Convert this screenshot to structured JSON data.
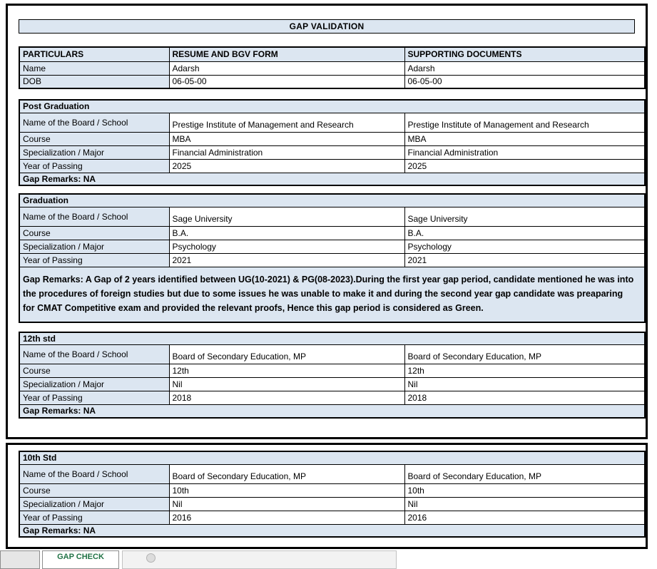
{
  "title": "GAP VALIDATION",
  "colors": {
    "band_blue": "#dce6f1",
    "tab_green": "#217346"
  },
  "particulars_table": {
    "headers": [
      "PARTICULARS",
      "RESUME AND BGV FORM",
      "SUPPORTING DOCUMENTS"
    ],
    "rows": [
      {
        "label": "Name",
        "resume": "Adarsh",
        "supporting": "Adarsh"
      },
      {
        "label": "DOB",
        "resume": "06-05-00",
        "supporting": "06-05-00"
      }
    ]
  },
  "row_labels": [
    "Name of the Board / School",
    "Course",
    "Specialization / Major",
    "Year of Passing"
  ],
  "sections": [
    {
      "title": "Post Graduation",
      "rows": [
        {
          "label": "Name of the Board / School",
          "resume": "Prestige Institute of Management and Research",
          "supporting": "Prestige Institute of Management and Research"
        },
        {
          "label": "Course",
          "resume": "MBA",
          "supporting": "MBA"
        },
        {
          "label": "Specialization / Major",
          "resume": "Financial Administration",
          "supporting": "Financial Administration"
        },
        {
          "label": "Year of Passing",
          "resume": "2025",
          "supporting": "2025"
        }
      ],
      "gap_remarks": "Gap Remarks: NA"
    },
    {
      "title": "Graduation",
      "rows": [
        {
          "label": "Name of the Board / School",
          "resume": "Sage University",
          "supporting": "Sage University"
        },
        {
          "label": "Course",
          "resume": "B.A.",
          "supporting": "B.A."
        },
        {
          "label": "Specialization / Major",
          "resume": "Psychology",
          "supporting": "Psychology"
        },
        {
          "label": "Year of Passing",
          "resume": "2021",
          "supporting": "2021"
        }
      ],
      "gap_remarks": "Gap Remarks: A Gap of 2 years identified between UG(10-2021) & PG(08-2023).During the first year gap period, candidate mentioned he was into the procedures of foreign studies but due to some issues he was unable to make it and during the second year gap candidate was preaparing for CMAT Competitive exam and provided the relevant proofs, Hence this gap period is considered as Green."
    },
    {
      "title": "12th std",
      "rows": [
        {
          "label": "Name of the Board / School",
          "resume": "Board of Secondary Education, MP",
          "supporting": "Board of Secondary Education, MP"
        },
        {
          "label": "Course",
          "resume": "12th",
          "supporting": "12th"
        },
        {
          "label": "Specialization / Major",
          "resume": "Nil",
          "supporting": "Nil"
        },
        {
          "label": "Year of Passing",
          "resume": "2018",
          "supporting": "2018"
        }
      ],
      "gap_remarks": "Gap Remarks: NA"
    },
    {
      "title": "10th Std",
      "rows": [
        {
          "label": "Name of the Board / School",
          "resume": "Board of Secondary Education, MP",
          "supporting": "Board of Secondary Education, MP"
        },
        {
          "label": "Course",
          "resume": "10th",
          "supporting": "10th"
        },
        {
          "label": "Specialization / Major",
          "resume": "Nil",
          "supporting": "Nil"
        },
        {
          "label": "Year of Passing",
          "resume": "2016",
          "supporting": "2016"
        }
      ],
      "gap_remarks": "Gap Remarks: NA"
    }
  ],
  "sheet_tabs": {
    "active_label": "GAP CHECK"
  }
}
